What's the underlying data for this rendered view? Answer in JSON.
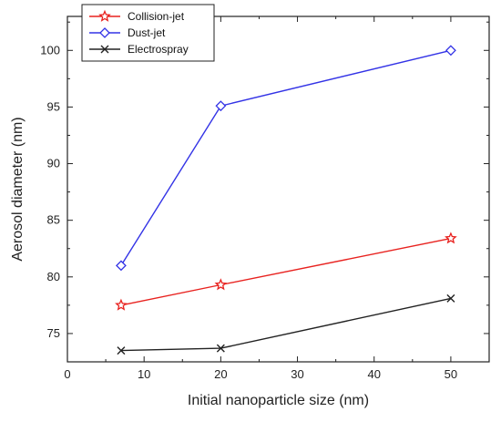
{
  "chart_data": {
    "type": "line",
    "xlabel": "Initial nanoparticle size (nm)",
    "ylabel": "Aerosol diameter (nm)",
    "xlim": [
      0,
      55
    ],
    "ylim": [
      72.5,
      103
    ],
    "xticks": [
      0,
      10,
      20,
      30,
      40,
      50
    ],
    "yticks": [
      75,
      80,
      85,
      90,
      95,
      100
    ],
    "legend_position": "top-left",
    "grid": false,
    "x": [
      7,
      20,
      50
    ],
    "series": [
      {
        "name": "Collision-jet",
        "values": [
          77.5,
          79.3,
          83.4
        ],
        "color": "#e8221f",
        "marker": "star"
      },
      {
        "name": "Dust-jet",
        "values": [
          81.0,
          95.1,
          100.0
        ],
        "color": "#3333e6",
        "marker": "diamond"
      },
      {
        "name": "Electrospray",
        "values": [
          73.5,
          73.7,
          78.1
        ],
        "color": "#222222",
        "marker": "x"
      }
    ]
  }
}
